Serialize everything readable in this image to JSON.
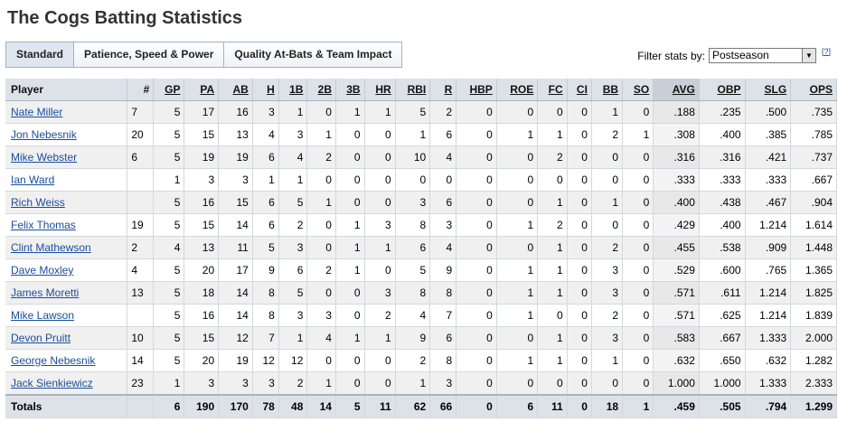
{
  "title": "The Cogs Batting Statistics",
  "tabs": [
    "Standard",
    "Patience, Speed & Power",
    "Quality At-Bats & Team Impact"
  ],
  "filter": {
    "label": "Filter stats by:",
    "value": "Postseason",
    "help": "[?]"
  },
  "columns": [
    "Player",
    "#",
    "GP",
    "PA",
    "AB",
    "H",
    "1B",
    "2B",
    "3B",
    "HR",
    "RBI",
    "R",
    "HBP",
    "ROE",
    "FC",
    "CI",
    "BB",
    "SO",
    "AVG",
    "OBP",
    "SLG",
    "OPS"
  ],
  "rows": [
    [
      "Nate Miller",
      "7",
      "5",
      "17",
      "16",
      "3",
      "1",
      "0",
      "1",
      "1",
      "5",
      "2",
      "0",
      "0",
      "0",
      "0",
      "1",
      "0",
      ".188",
      ".235",
      ".500",
      ".735"
    ],
    [
      "Jon Nebesnik",
      "20",
      "5",
      "15",
      "13",
      "4",
      "3",
      "1",
      "0",
      "0",
      "1",
      "6",
      "0",
      "1",
      "1",
      "0",
      "2",
      "1",
      ".308",
      ".400",
      ".385",
      ".785"
    ],
    [
      "Mike Webster",
      "6",
      "5",
      "19",
      "19",
      "6",
      "4",
      "2",
      "0",
      "0",
      "10",
      "4",
      "0",
      "0",
      "2",
      "0",
      "0",
      "0",
      ".316",
      ".316",
      ".421",
      ".737"
    ],
    [
      "Ian Ward",
      "",
      "1",
      "3",
      "3",
      "1",
      "1",
      "0",
      "0",
      "0",
      "0",
      "0",
      "0",
      "0",
      "0",
      "0",
      "0",
      "0",
      ".333",
      ".333",
      ".333",
      ".667"
    ],
    [
      "Rich Weiss",
      "",
      "5",
      "16",
      "15",
      "6",
      "5",
      "1",
      "0",
      "0",
      "3",
      "6",
      "0",
      "0",
      "1",
      "0",
      "1",
      "0",
      ".400",
      ".438",
      ".467",
      ".904"
    ],
    [
      "Felix Thomas",
      "19",
      "5",
      "15",
      "14",
      "6",
      "2",
      "0",
      "1",
      "3",
      "8",
      "3",
      "0",
      "1",
      "2",
      "0",
      "0",
      "0",
      ".429",
      ".400",
      "1.214",
      "1.614"
    ],
    [
      "Clint Mathewson",
      "2",
      "4",
      "13",
      "11",
      "5",
      "3",
      "0",
      "1",
      "1",
      "6",
      "4",
      "0",
      "0",
      "1",
      "0",
      "2",
      "0",
      ".455",
      ".538",
      ".909",
      "1.448"
    ],
    [
      "Dave Moxley",
      "4",
      "5",
      "20",
      "17",
      "9",
      "6",
      "2",
      "1",
      "0",
      "5",
      "9",
      "0",
      "1",
      "1",
      "0",
      "3",
      "0",
      ".529",
      ".600",
      ".765",
      "1.365"
    ],
    [
      "James Moretti",
      "13",
      "5",
      "18",
      "14",
      "8",
      "5",
      "0",
      "0",
      "3",
      "8",
      "8",
      "0",
      "1",
      "1",
      "0",
      "3",
      "0",
      ".571",
      ".611",
      "1.214",
      "1.825"
    ],
    [
      "Mike Lawson",
      "",
      "5",
      "16",
      "14",
      "8",
      "3",
      "3",
      "0",
      "2",
      "4",
      "7",
      "0",
      "1",
      "0",
      "0",
      "2",
      "0",
      ".571",
      ".625",
      "1.214",
      "1.839"
    ],
    [
      "Devon Pruitt",
      "10",
      "5",
      "15",
      "12",
      "7",
      "1",
      "4",
      "1",
      "1",
      "9",
      "6",
      "0",
      "0",
      "1",
      "0",
      "3",
      "0",
      ".583",
      ".667",
      "1.333",
      "2.000"
    ],
    [
      "George Nebesnik",
      "14",
      "5",
      "20",
      "19",
      "12",
      "12",
      "0",
      "0",
      "0",
      "2",
      "8",
      "0",
      "1",
      "1",
      "0",
      "1",
      "0",
      ".632",
      ".650",
      ".632",
      "1.282"
    ],
    [
      "Jack Sienkiewicz",
      "23",
      "1",
      "3",
      "3",
      "3",
      "2",
      "1",
      "0",
      "0",
      "1",
      "3",
      "0",
      "0",
      "0",
      "0",
      "0",
      "0",
      "1.000",
      "1.000",
      "1.333",
      "2.333"
    ]
  ],
  "totals": [
    "Totals",
    "",
    "6",
    "190",
    "170",
    "78",
    "48",
    "14",
    "5",
    "11",
    "62",
    "66",
    "0",
    "6",
    "11",
    "0",
    "18",
    "1",
    ".459",
    ".505",
    ".794",
    "1.299"
  ]
}
